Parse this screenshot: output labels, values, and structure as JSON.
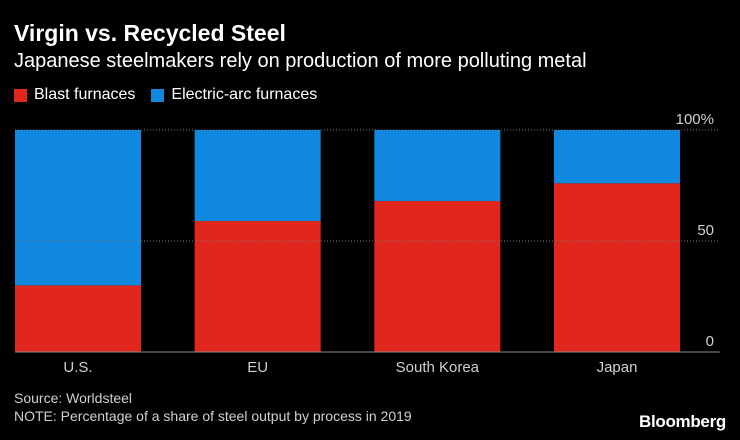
{
  "header": {
    "title": "Virgin vs. Recycled Steel",
    "subtitle": "Japanese steelmakers rely on production of more polluting metal"
  },
  "legend": {
    "items": [
      {
        "label": "Blast furnaces",
        "color": "#e0261d"
      },
      {
        "label": "Electric-arc furnaces",
        "color": "#1188e0"
      }
    ]
  },
  "footer": {
    "source": "Source: Worldsteel",
    "note": "NOTE: Percentage of a share of steel output by process in 2019",
    "logo": "Bloomberg"
  },
  "chart_data": {
    "type": "bar",
    "stacked": true,
    "categories": [
      "U.S.",
      "EU",
      "South Korea",
      "Japan"
    ],
    "series": [
      {
        "name": "Blast furnaces",
        "color": "#e0261d",
        "values": [
          30,
          59,
          68,
          76
        ]
      },
      {
        "name": "Electric-arc furnaces",
        "color": "#1188e0",
        "values": [
          70,
          41,
          32,
          24
        ]
      }
    ],
    "title": "Virgin vs. Recycled Steel",
    "subtitle": "Japanese steelmakers rely on production of more polluting metal",
    "ylim": [
      0,
      100
    ],
    "yticks": [
      0,
      50,
      100
    ],
    "ytick_labels": [
      "0",
      "50",
      "100%"
    ],
    "gridlines": true,
    "y_axis_position": "right",
    "legend_position": "top-left"
  }
}
